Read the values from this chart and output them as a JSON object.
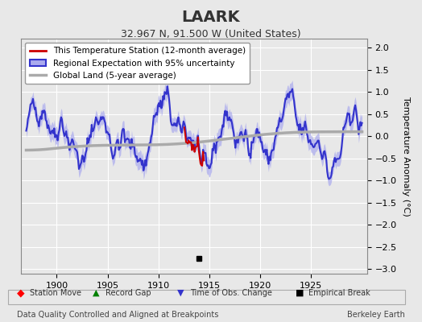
{
  "title": "LAARK",
  "subtitle": "32.967 N, 91.500 W (United States)",
  "ylabel": "Temperature Anomaly (°C)",
  "xlabel_footer": "Data Quality Controlled and Aligned at Breakpoints",
  "footer_right": "Berkeley Earth",
  "year_start": 1897,
  "year_end": 1930,
  "ylim": [
    -3.1,
    2.2
  ],
  "yticks": [
    -3,
    -2.5,
    -2,
    -1.5,
    -1,
    -0.5,
    0,
    0.5,
    1,
    1.5,
    2
  ],
  "xticks": [
    1900,
    1905,
    1910,
    1915,
    1920,
    1925
  ],
  "bg_color": "#e8e8e8",
  "plot_bg_color": "#e8e8e8",
  "grid_color": "#ffffff",
  "regional_color": "#3333cc",
  "regional_fill_color": "#aaaaee",
  "station_color": "#cc0000",
  "global_color": "#aaaaaa",
  "global_lw": 2.5,
  "regional_lw": 1.5,
  "station_lw": 1.5,
  "empirical_break_year": 1914.0,
  "tobs_change_year": 1914.0,
  "legend_items": [
    "This Temperature Station (12-month average)",
    "Regional Expectation with 95% uncertainty",
    "Global Land (5-year average)"
  ]
}
